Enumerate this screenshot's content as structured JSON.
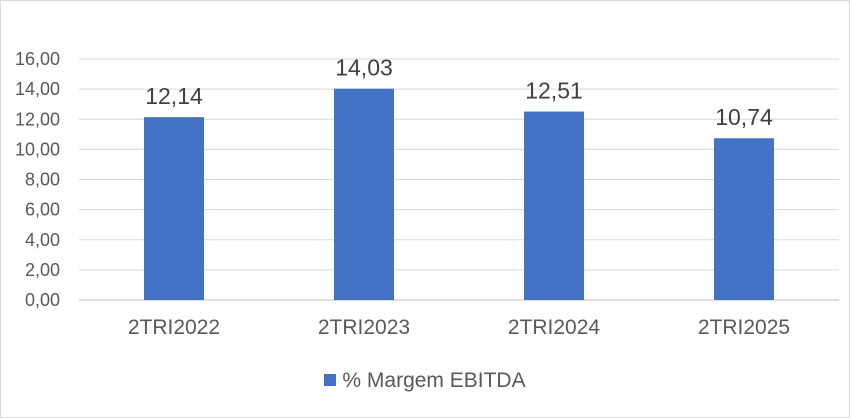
{
  "chart_data": {
    "type": "bar",
    "title": "",
    "xlabel": "",
    "ylabel": "",
    "categories": [
      "2TRI2022",
      "2TRI2023",
      "2TRI2024",
      "2TRI2025"
    ],
    "series": [
      {
        "name": "% Margem EBITDA",
        "values": [
          12.14,
          14.03,
          12.51,
          10.74
        ],
        "color": "#4472C4"
      }
    ],
    "data_labels": [
      "12,14",
      "14,03",
      "12,51",
      "10,74"
    ],
    "ylim": [
      0,
      16
    ],
    "yticks": [
      0,
      2,
      4,
      6,
      8,
      10,
      12,
      14,
      16
    ],
    "ytick_labels": [
      "0,00",
      "2,00",
      "4,00",
      "6,00",
      "8,00",
      "10,00",
      "12,00",
      "14,00",
      "16,00"
    ],
    "grid": true,
    "legend_position": "bottom",
    "legend_label": "% Margem EBITDA"
  }
}
